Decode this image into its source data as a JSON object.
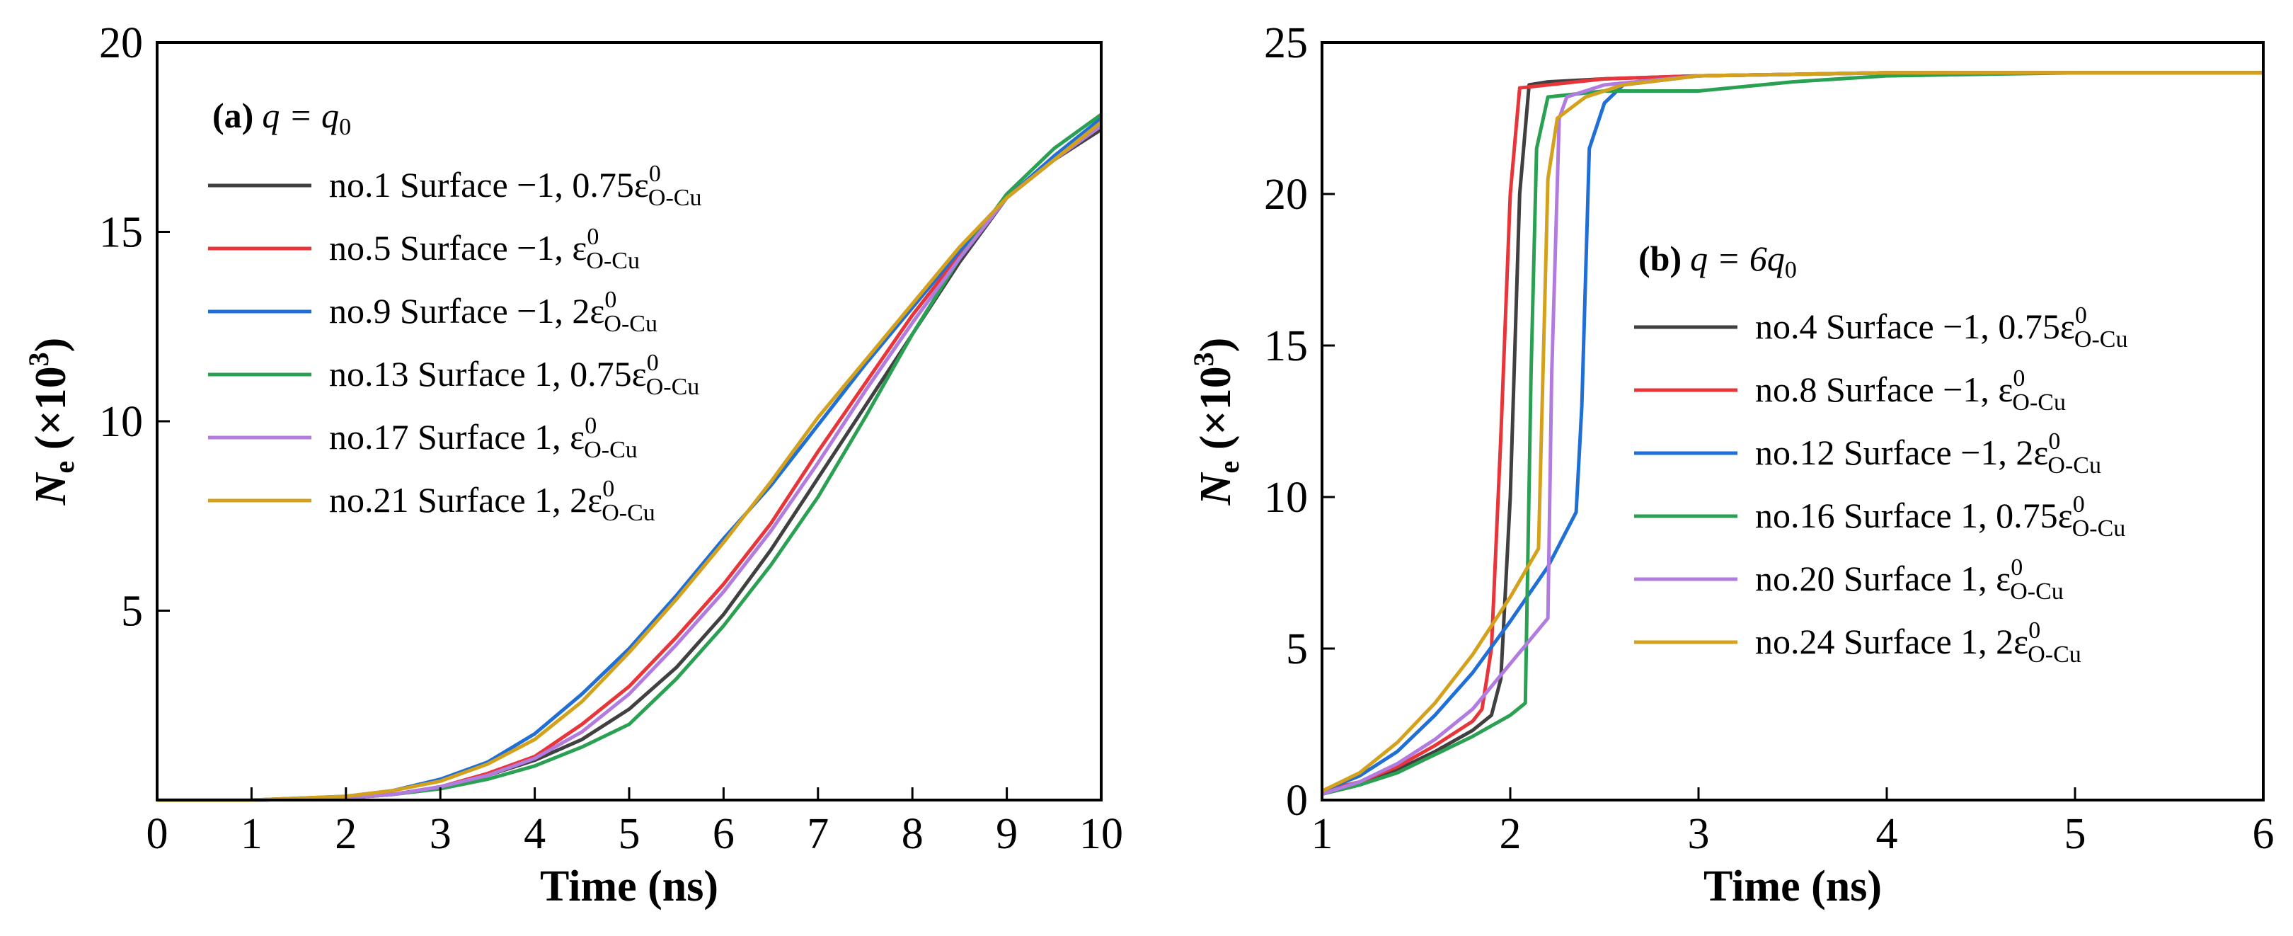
{
  "chart_data": [
    {
      "type": "line",
      "panel_label": {
        "letter": "(a)",
        "formula": "q = q",
        "subscript": "0"
      },
      "xlabel": "Time (ns)",
      "ylabel": {
        "base": "N",
        "sub": "e",
        "rest": " (×10",
        "sup": "3",
        "close": ")"
      },
      "xlim": [
        0,
        10
      ],
      "ylim": [
        0,
        20
      ],
      "xticks": [
        0,
        1,
        2,
        3,
        4,
        5,
        6,
        7,
        8,
        9,
        10
      ],
      "yticks": [
        5,
        10,
        15,
        20
      ],
      "legend_position": "upper-left",
      "series": [
        {
          "name": "no.1 Surface −1, 0.75ε",
          "sup": "0",
          "sub": "O-Cu",
          "color": "#404040",
          "x": [
            0,
            1,
            2,
            2.5,
            3,
            3.5,
            4,
            4.5,
            5,
            5.5,
            6,
            6.5,
            7,
            7.5,
            8,
            8.5,
            9,
            9.5,
            10
          ],
          "y": [
            0,
            0,
            0.05,
            0.15,
            0.35,
            0.65,
            1.05,
            1.6,
            2.4,
            3.5,
            4.9,
            6.6,
            8.5,
            10.4,
            12.3,
            14.2,
            15.9,
            16.9,
            17.7
          ]
        },
        {
          "name": "no.5 Surface −1, ε",
          "sup": "0",
          "sub": "O-Cu",
          "color": "#e8353a",
          "x": [
            0,
            1,
            2,
            2.5,
            3,
            3.5,
            4,
            4.5,
            5,
            5.5,
            6,
            6.5,
            7,
            7.5,
            8,
            8.5,
            9,
            9.5,
            10
          ],
          "y": [
            0,
            0,
            0.05,
            0.15,
            0.35,
            0.7,
            1.15,
            2.0,
            3.0,
            4.3,
            5.7,
            7.3,
            9.2,
            11.0,
            12.8,
            14.4,
            15.9,
            16.9,
            17.8
          ]
        },
        {
          "name": "no.9 Surface −1, 2ε",
          "sup": "0",
          "sub": "O-Cu",
          "color": "#1f6fd6",
          "x": [
            0,
            1,
            2,
            2.5,
            3,
            3.5,
            4,
            4.5,
            5,
            5.5,
            6,
            6.5,
            7,
            7.5,
            8,
            8.5,
            9,
            9.5,
            10
          ],
          "y": [
            0,
            0,
            0.1,
            0.25,
            0.55,
            1.0,
            1.75,
            2.8,
            4.0,
            5.4,
            6.9,
            8.3,
            9.9,
            11.5,
            13.0,
            14.5,
            15.9,
            17.0,
            18.0
          ]
        },
        {
          "name": "no.13 Surface 1, 0.75ε",
          "sup": "0",
          "sub": "O-Cu",
          "color": "#2aa052",
          "x": [
            0,
            1,
            2,
            2.5,
            3,
            3.5,
            4,
            4.5,
            5,
            5.5,
            6,
            6.5,
            7,
            7.5,
            8,
            8.5,
            9,
            9.5,
            10
          ],
          "y": [
            0,
            0,
            0.05,
            0.15,
            0.3,
            0.55,
            0.9,
            1.4,
            2.0,
            3.2,
            4.6,
            6.2,
            8.0,
            10.1,
            12.3,
            14.3,
            16.0,
            17.2,
            18.1
          ]
        },
        {
          "name": "no.17 Surface 1, ε",
          "sup": "0",
          "sub": "O-Cu",
          "color": "#b27be0",
          "x": [
            0,
            1,
            2,
            2.5,
            3,
            3.5,
            4,
            4.5,
            5,
            5.5,
            6,
            6.5,
            7,
            7.5,
            8,
            8.5,
            9,
            9.5,
            10
          ],
          "y": [
            0,
            0,
            0.05,
            0.15,
            0.35,
            0.65,
            1.1,
            1.8,
            2.8,
            4.1,
            5.5,
            7.1,
            8.9,
            10.8,
            12.6,
            14.3,
            15.9,
            16.9,
            17.8
          ]
        },
        {
          "name": "no.21 Surface 1, 2ε",
          "sup": "0",
          "sub": "O-Cu",
          "color": "#d3a11c",
          "x": [
            0,
            1,
            2,
            2.5,
            3,
            3.5,
            4,
            4.5,
            5,
            5.5,
            6,
            6.5,
            7,
            7.5,
            8,
            8.5,
            9,
            9.5,
            10
          ],
          "y": [
            0,
            0,
            0.1,
            0.25,
            0.5,
            0.95,
            1.6,
            2.6,
            3.9,
            5.3,
            6.8,
            8.4,
            10.1,
            11.6,
            13.1,
            14.6,
            15.9,
            16.9,
            17.9
          ]
        }
      ]
    },
    {
      "type": "line",
      "panel_label": {
        "letter": "(b)",
        "formula": "q = 6q",
        "subscript": "0"
      },
      "xlabel": "Time (ns)",
      "ylabel": {
        "base": "N",
        "sub": "e",
        "rest": " (×10",
        "sup": "3",
        "close": ")"
      },
      "xlim": [
        1,
        6
      ],
      "ylim": [
        0,
        25
      ],
      "xticks": [
        1,
        2,
        3,
        4,
        5,
        6
      ],
      "yticks": [
        0,
        5,
        10,
        15,
        20,
        25
      ],
      "legend_position": "center-right",
      "series": [
        {
          "name": "no.4 Surface −1, 0.75ε",
          "sup": "0",
          "sub": "O-Cu",
          "color": "#404040",
          "x": [
            1,
            1.2,
            1.4,
            1.6,
            1.8,
            1.9,
            1.95,
            2.0,
            2.05,
            2.1,
            2.2,
            2.5,
            3,
            4,
            5,
            6
          ],
          "y": [
            0.2,
            0.5,
            1.0,
            1.6,
            2.3,
            2.8,
            4.0,
            10.0,
            20.0,
            23.6,
            23.7,
            23.8,
            23.9,
            24.0,
            24.0,
            24.0
          ]
        },
        {
          "name": "no.8 Surface −1, ε",
          "sup": "0",
          "sub": "O-Cu",
          "color": "#e8353a",
          "x": [
            1,
            1.2,
            1.4,
            1.6,
            1.8,
            1.85,
            1.9,
            1.95,
            2.0,
            2.05,
            2.2,
            2.5,
            3,
            4,
            5,
            6
          ],
          "y": [
            0.3,
            0.6,
            1.1,
            1.8,
            2.6,
            3.0,
            5.0,
            12.0,
            20.0,
            23.5,
            23.6,
            23.8,
            23.9,
            24.0,
            24.0,
            24.0
          ]
        },
        {
          "name": "no.12 Surface −1, 2ε",
          "sup": "0",
          "sub": "O-Cu",
          "color": "#1f6fd6",
          "x": [
            1,
            1.2,
            1.4,
            1.6,
            1.8,
            2.0,
            2.2,
            2.35,
            2.38,
            2.42,
            2.5,
            2.6,
            3,
            4,
            5,
            6
          ],
          "y": [
            0.3,
            0.8,
            1.6,
            2.8,
            4.2,
            5.9,
            7.7,
            9.5,
            13.0,
            21.5,
            23.0,
            23.6,
            23.9,
            24.0,
            24.0,
            24.0
          ]
        },
        {
          "name": "no.16 Surface 1, 0.75ε",
          "sup": "0",
          "sub": "O-Cu",
          "color": "#2aa052",
          "x": [
            1,
            1.2,
            1.4,
            1.6,
            1.8,
            2.0,
            2.08,
            2.11,
            2.14,
            2.2,
            2.5,
            3,
            3.5,
            4,
            5,
            6
          ],
          "y": [
            0.2,
            0.5,
            0.9,
            1.5,
            2.1,
            2.8,
            3.2,
            14.0,
            21.5,
            23.2,
            23.4,
            23.4,
            23.7,
            23.9,
            24.0,
            24.0
          ]
        },
        {
          "name": "no.20 Surface 1, ε",
          "sup": "0",
          "sub": "O-Cu",
          "color": "#b27be0",
          "x": [
            1,
            1.2,
            1.4,
            1.6,
            1.8,
            2.0,
            2.2,
            2.22,
            2.26,
            2.3,
            2.5,
            3,
            4,
            5,
            6
          ],
          "y": [
            0.2,
            0.6,
            1.2,
            2.0,
            3.0,
            4.5,
            6.0,
            14.0,
            22.5,
            23.2,
            23.6,
            23.9,
            24.0,
            24.0,
            24.0
          ]
        },
        {
          "name": "no.24 Surface 1, 2ε",
          "sup": "0",
          "sub": "O-Cu",
          "color": "#d3a11c",
          "x": [
            1,
            1.2,
            1.4,
            1.6,
            1.8,
            2.0,
            2.15,
            2.2,
            2.25,
            2.4,
            2.6,
            3,
            4,
            5,
            6
          ],
          "y": [
            0.3,
            0.9,
            1.9,
            3.2,
            4.8,
            6.7,
            8.3,
            20.5,
            22.5,
            23.2,
            23.6,
            23.9,
            24.0,
            24.0,
            24.0
          ]
        }
      ]
    }
  ]
}
